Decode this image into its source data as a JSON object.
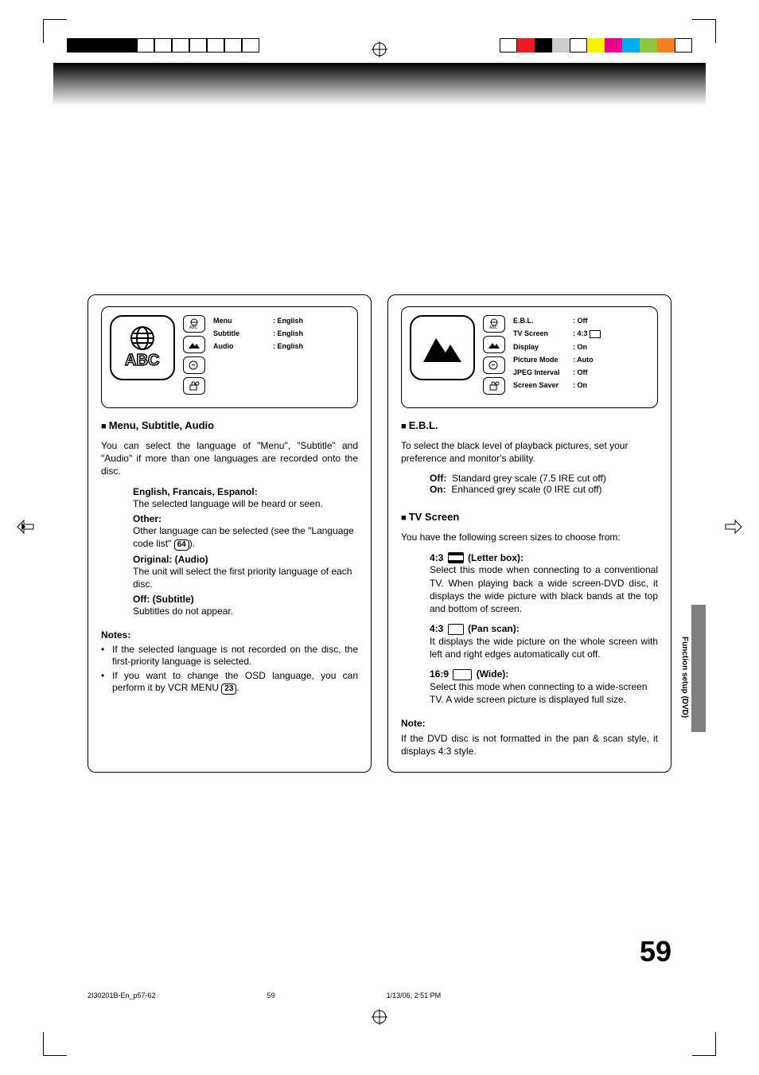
{
  "printer_colors_left": [
    "#000000",
    "#000000",
    "#000000",
    "#000000",
    "#ffffff",
    "#ffffff",
    "#ffffff",
    "#ffffff",
    "#ffffff",
    "#ffffff",
    "#ffffff"
  ],
  "printer_colors_right": [
    "#ffffff",
    "#ed1c24",
    "#000000",
    "#cccccc",
    "#ffffff",
    "#fff200",
    "#ec008c",
    "#00aeef",
    "#8dc63f",
    "#f58220",
    "#ffffff"
  ],
  "osd_left": {
    "items": [
      {
        "label": "Menu",
        "value": ": English"
      },
      {
        "label": "Subtitle",
        "value": ": English"
      },
      {
        "label": "Audio",
        "value": ": English"
      }
    ]
  },
  "osd_right": {
    "items": [
      {
        "label": "E.B.L.",
        "value": ": Off"
      },
      {
        "label": "TV Screen",
        "value": ": 4:3"
      },
      {
        "label": "Display",
        "value": ": On"
      },
      {
        "label": "Picture Mode",
        "value": ": Auto"
      },
      {
        "label": "JPEG Interval",
        "value": ": Off"
      },
      {
        "label": "Screen Saver",
        "value": ": On"
      }
    ]
  },
  "left_col": {
    "head1": "Menu, Subtitle, Audio",
    "p1": "You can select the language of \"Menu\", \"Subtitle\" and \"Audio\" if more than one languages are recorded onto the disc.",
    "efs_head": "English, Francais, Espanol:",
    "efs_body": "The selected language will be heard or seen.",
    "other_head": "Other:",
    "other_body_a": "Other language can be selected (see the \"Language code list\" ",
    "other_ref": "64",
    "other_body_b": ").",
    "orig_head": "Original: (Audio)",
    "orig_body": "The unit will select the first priority language of each disc.",
    "off_head": "Off: (Subtitle)",
    "off_body": "Subtitles do not appear.",
    "notes_head": "Notes:",
    "note1": "If the selected language is not recorded on the disc, the first-priority language is selected.",
    "note2_a": "If you want to change the OSD language, you can perform it by VCR MENU ",
    "note2_ref": "23",
    "note2_b": "."
  },
  "right_col": {
    "head1": "E.B.L.",
    "p1": "To select the black level of playback pictures, set your preference and monitor's ability.",
    "off_label": "Off:",
    "off_body": "Standard grey scale (7.5 IRE cut off)",
    "on_label": "On:",
    "on_body": "Enhanced grey scale (0 IRE cut off)",
    "head2": "TV Screen",
    "p2": "You have the following screen sizes to choose from:",
    "lb_head_a": "4:3",
    "lb_head_b": "(Letter box):",
    "lb_body": "Select this mode when connecting to a conventional TV. When playing back a wide screen-DVD disc, it displays the wide picture with black bands at the top and bottom of screen.",
    "ps_head_a": "4:3",
    "ps_head_b": "(Pan scan):",
    "ps_body": "It displays the wide picture on the whole screen with left and right edges automatically cut off.",
    "wd_head_a": "16:9",
    "wd_head_b": "(Wide):",
    "wd_body": "Select this mode when connecting to a wide-screen TV. A wide screen picture is displayed full size.",
    "note_head": "Note:",
    "note_body": "If the DVD disc is not formatted in the pan & scan style, it displays 4:3 style."
  },
  "side_label": "Function setup (DVD)",
  "page_number": "59",
  "footer": {
    "file": "2I30201B-En_p57-62",
    "page": "59",
    "date": "1/13/06, 2:51 PM"
  }
}
